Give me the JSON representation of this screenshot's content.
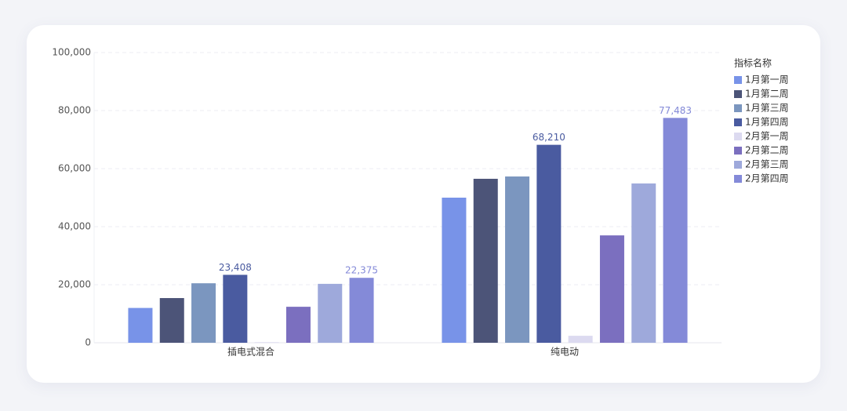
{
  "chart_data": {
    "type": "bar",
    "categories": [
      "插电式混合",
      "纯电动"
    ],
    "legend_title": "指标名称",
    "legend_position": "right",
    "grid": true,
    "ylim": [
      0,
      100000
    ],
    "yticks": [
      0,
      {
        "value": 20000,
        "label": "20,000"
      },
      {
        "value": 40000,
        "label": "40,000"
      },
      {
        "value": 60000,
        "label": "60,000"
      },
      {
        "value": 80000,
        "label": "80,000"
      },
      {
        "value": 100000,
        "label": "100,000"
      }
    ],
    "series": [
      {
        "name": "1月第一周",
        "color": "#7893e8",
        "values": [
          12000,
          50000
        ]
      },
      {
        "name": "1月第二周",
        "color": "#4c5478",
        "values": [
          15400,
          56500
        ]
      },
      {
        "name": "1月第三周",
        "color": "#7b96bf",
        "values": [
          20500,
          57300
        ]
      },
      {
        "name": "1月第四周",
        "color": "#4a5ba0",
        "values": [
          23408,
          68210
        ],
        "value_labels": [
          "23,408",
          "68,210"
        ]
      },
      {
        "name": "2月第一周",
        "color": "#dcdaf0",
        "values": [
          200,
          2400
        ]
      },
      {
        "name": "2月第二周",
        "color": "#7b6fbf",
        "values": [
          12400,
          37000
        ]
      },
      {
        "name": "2月第三周",
        "color": "#9ea9db",
        "values": [
          20300,
          54900
        ]
      },
      {
        "name": "2月第四周",
        "color": "#848ad8",
        "values": [
          22375,
          77483
        ],
        "value_labels": [
          "22,375",
          "77,483"
        ]
      }
    ]
  }
}
